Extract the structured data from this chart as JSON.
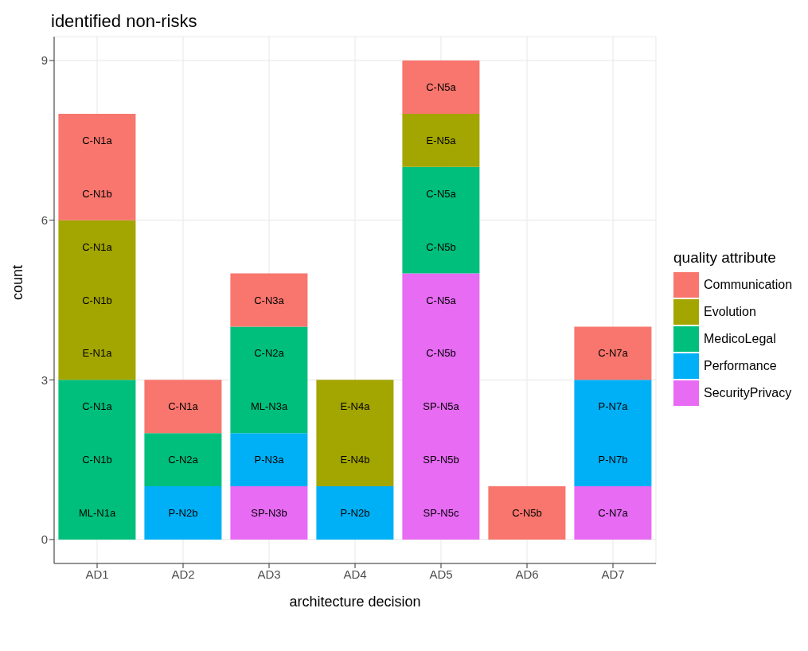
{
  "chart_data": {
    "type": "bar",
    "title": "identified non-risks",
    "xlabel": "architecture decision",
    "ylabel": "count",
    "legend_title": "quality attribute",
    "categories": [
      "AD1",
      "AD2",
      "AD3",
      "AD4",
      "AD5",
      "AD6",
      "AD7"
    ],
    "stacked": true,
    "series": [
      {
        "name": "SecurityPrivacy",
        "color": "#e76bf3",
        "values": [
          0,
          0,
          1,
          0,
          5,
          0,
          1
        ]
      },
      {
        "name": "Performance",
        "color": "#00b0f6",
        "values": [
          0,
          1,
          1,
          1,
          0,
          0,
          2
        ]
      },
      {
        "name": "MedicoLegal",
        "color": "#00bf7d",
        "values": [
          3,
          1,
          2,
          0,
          2,
          0,
          0
        ]
      },
      {
        "name": "Evolution",
        "color": "#a3a500",
        "values": [
          3,
          0,
          0,
          2,
          1,
          0,
          0
        ]
      },
      {
        "name": "Communication",
        "color": "#f8766d",
        "values": [
          2,
          1,
          1,
          0,
          1,
          1,
          1
        ]
      }
    ],
    "ylim": [
      -0.45,
      9.45
    ],
    "yticks": [
      0,
      3,
      6,
      9
    ],
    "grid": true,
    "legend": "right",
    "annotations": [
      "C-N1a",
      "C-N1b",
      "C-N1a",
      "C-N1b",
      "E-N1a",
      "C-N1a",
      "C-N1b",
      "ML-N1a",
      "C-N1a",
      "C-N2a",
      "P-N2b",
      "C-N3a",
      "C-N2a",
      "ML-N3a",
      "P-N3a",
      "SP-N3b",
      "E-N4a",
      "E-N4b",
      "P-N2b",
      "C-N5a",
      "E-N5a",
      "C-N5a",
      "C-N5b",
      "C-N5a",
      "C-N5b",
      "SP-N5a",
      "SP-N5b",
      "SP-N5c",
      "C-N5b",
      "C-N7a",
      "P-N7a",
      "P-N7b",
      "C-N7a"
    ]
  }
}
